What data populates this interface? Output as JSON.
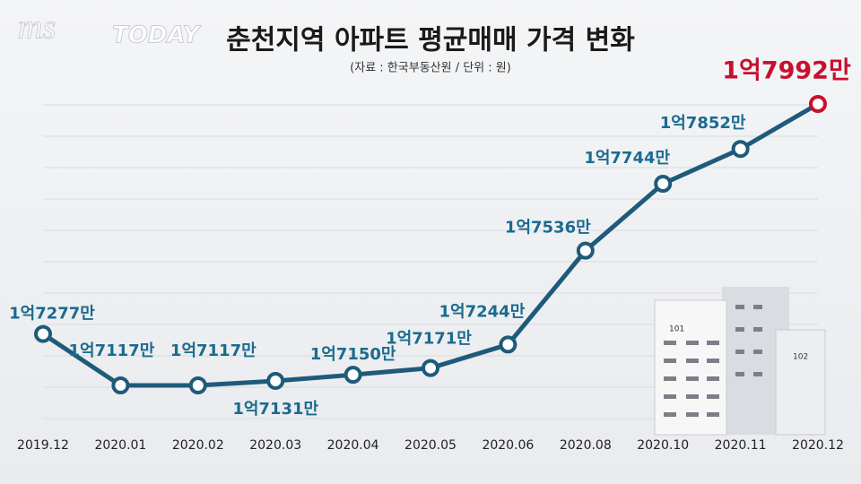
{
  "chart_data": {
    "type": "line",
    "title": "춘천지역 아파트 평균매매 가격 변화",
    "subtitle": "(자료 : 한국부동산원 / 단위 : 원)",
    "logo": [
      "ms",
      "TODAY"
    ],
    "illustration_labels": [
      "101",
      "102"
    ],
    "categories": [
      "2019.12",
      "2020.01",
      "2020.02",
      "2020.03",
      "2020.04",
      "2020.05",
      "2020.06",
      "2020.08",
      "2020.10",
      "2020.11",
      "2020.12"
    ],
    "series": [
      {
        "name": "평균매매 가격",
        "color": "#1e5a7a",
        "label_color": "#1b6b8e",
        "last_color": "#c8102e",
        "values": [
          17277,
          17117,
          17117,
          17131,
          17150,
          17171,
          17244,
          17536,
          17744,
          17852,
          17992
        ],
        "value_labels": [
          "1억7277만",
          "1억7117만",
          "1억7117만",
          "1억7131만",
          "1억7150만",
          "1억7171만",
          "1억7244만",
          "1억7536만",
          "1억7744만",
          "1억7852만",
          "1억7992만"
        ]
      }
    ],
    "grid": true
  }
}
